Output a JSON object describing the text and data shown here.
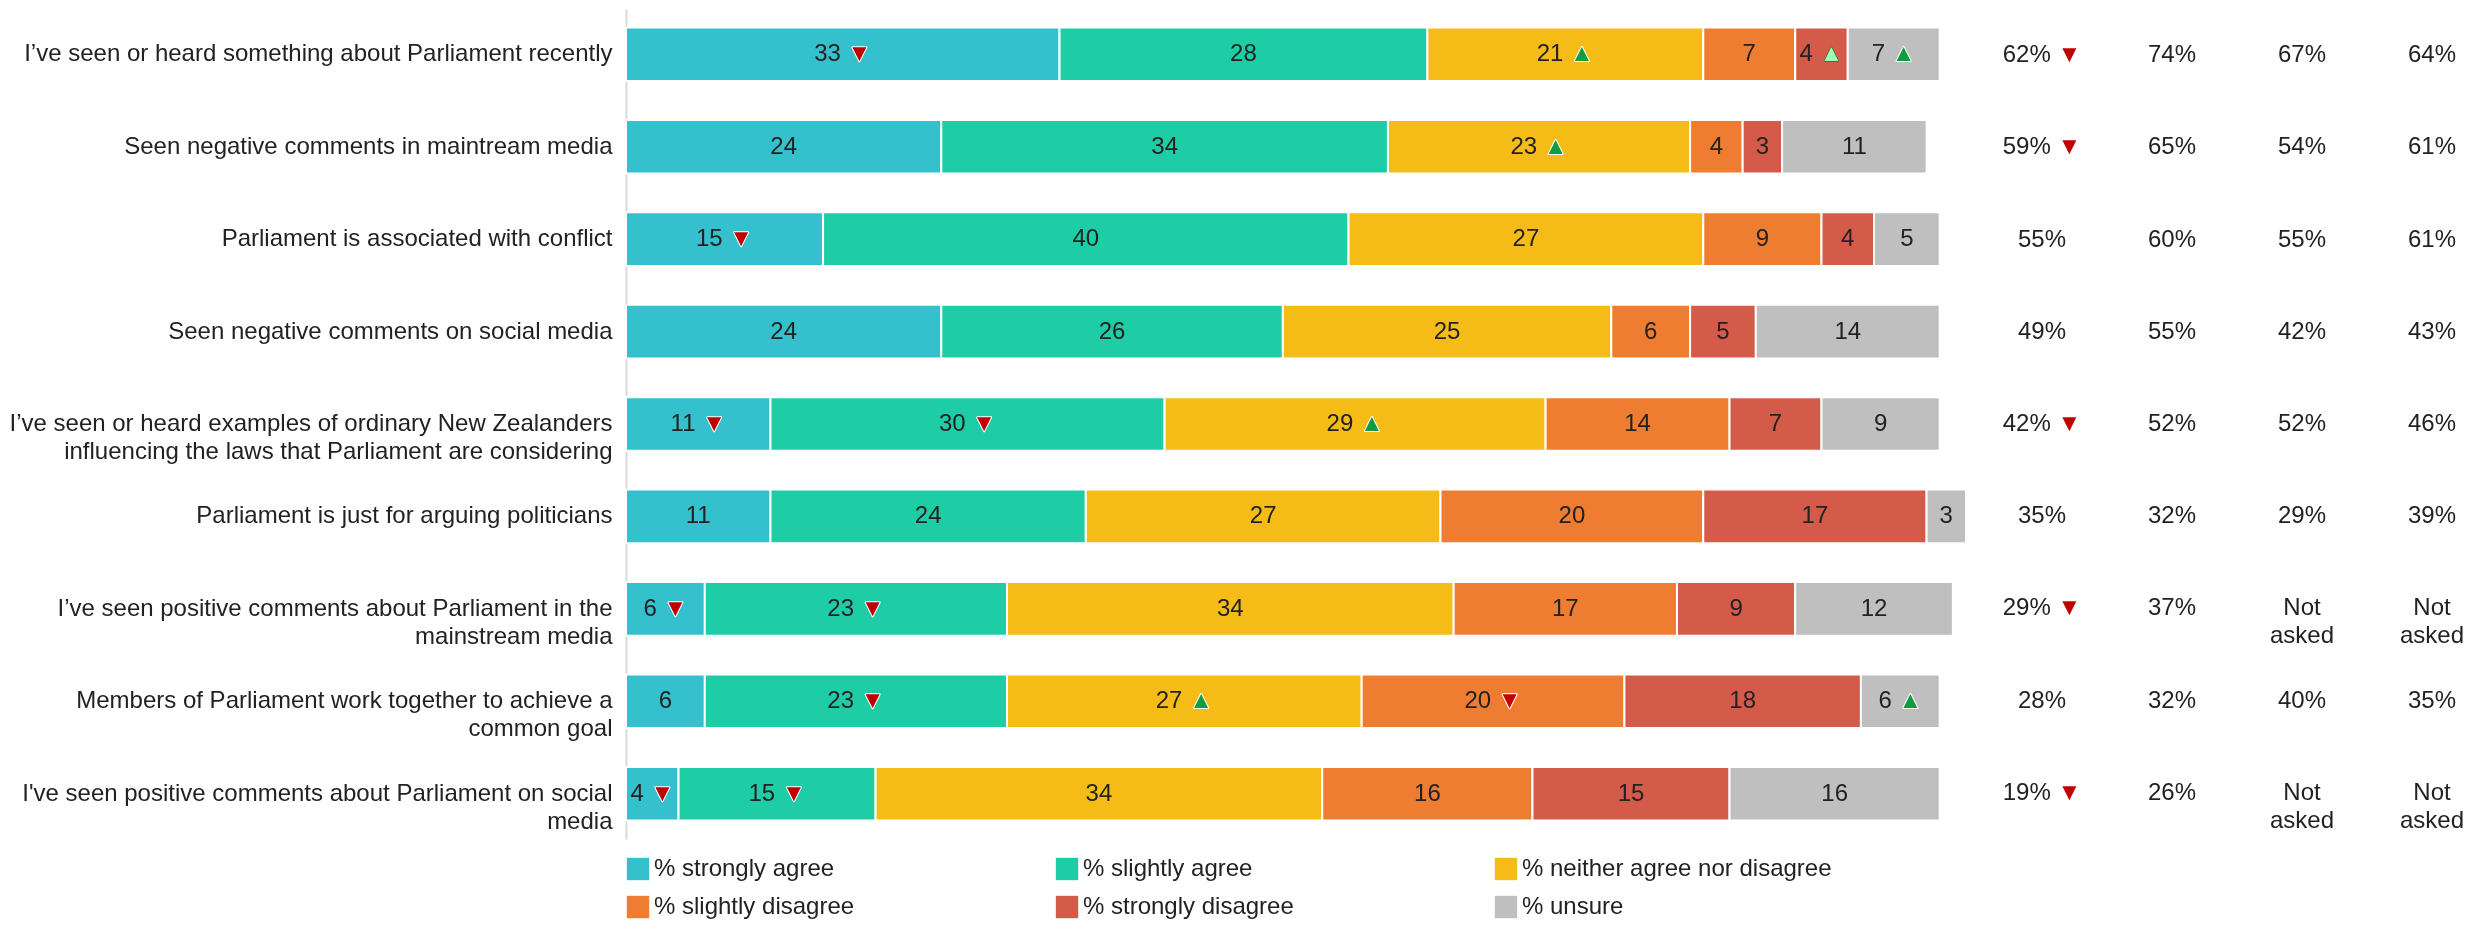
{
  "chart_data": {
    "type": "bar",
    "orientation": "horizontal",
    "stacked": true,
    "legend": "bottom",
    "categories": [
      "I’ve seen or heard something about Parliament recently",
      "Seen negative comments in maintream media",
      "Parliament is associated with conflict",
      "Seen negative comments on social media",
      "I’ve seen or heard examples of ordinary New Zealanders influencing the laws that Parliament are considering",
      "Parliament is just for arguing politicians",
      "I’ve seen positive comments about Parliament in the mainstream media",
      "Members of Parliament work together to achieve a common goal",
      "I've seen positive comments about Parliament on social media"
    ],
    "series": [
      {
        "name": "% strongly agree",
        "color": "#35c0cd",
        "values": [
          33,
          24,
          15,
          24,
          11,
          11,
          6,
          6,
          4
        ],
        "value_labels": [
          "33 ▼",
          "24",
          "15 ▼",
          "24",
          "11 ▼",
          "11",
          "6 ▼",
          "6",
          "4 ▼"
        ]
      },
      {
        "name": "% slightly agree",
        "color": "#1ecda6",
        "values": [
          28,
          34,
          40,
          26,
          30,
          24,
          23,
          23,
          15
        ],
        "value_labels": [
          "28",
          "34",
          "40",
          "26",
          "30 ▼",
          "24",
          "23 ▼",
          "23 ▼",
          "15 ▼"
        ]
      },
      {
        "name": "% neither agree nor disagree",
        "color": "#f5bc18",
        "values": [
          21,
          23,
          27,
          25,
          29,
          27,
          34,
          27,
          34
        ],
        "value_labels": [
          "21 ▲",
          "23 ▲",
          "27",
          "25",
          "29 ▲",
          "27",
          "34",
          "27 ▲",
          "34"
        ]
      },
      {
        "name": "% slightly disagree",
        "color": "#ee7d31",
        "values": [
          7,
          4,
          9,
          6,
          14,
          20,
          17,
          20,
          16
        ],
        "value_labels": [
          "7",
          "4",
          "9",
          "6",
          "14",
          "20",
          "17",
          "20 ▼",
          "16"
        ]
      },
      {
        "name": "% strongly disagree",
        "color": "#d45b4a",
        "values": [
          4,
          3,
          4,
          5,
          7,
          17,
          9,
          18,
          15
        ],
        "value_labels": [
          "4 ▲",
          "3",
          "4",
          "5",
          "7",
          "17",
          "9",
          "18",
          "15"
        ]
      },
      {
        "name": "% unsure",
        "color": "#bfbfbf",
        "values": [
          7,
          11,
          5,
          14,
          9,
          3,
          12,
          6,
          16
        ],
        "value_labels": [
          "7 ▲",
          "11",
          "5",
          "14",
          "9",
          "3",
          "12",
          "6 ▲",
          "16"
        ]
      }
    ],
    "annotations": [
      "62% ▼",
      "74%",
      "67%",
      "64%",
      "59% ▼",
      "65%",
      "54%",
      "61%",
      "55%",
      "60%",
      "55%",
      "61%",
      "49%",
      "55%",
      "42%",
      "43%",
      "42% ▼",
      "52%",
      "52%",
      "46%",
      "35%",
      "32%",
      "29%",
      "39%",
      "29% ▼",
      "37%",
      "Not asked",
      "Not asked",
      "28%",
      "32%",
      "40%",
      "35%",
      "19% ▼",
      "26%",
      "Not asked",
      "Not asked"
    ]
  }
}
